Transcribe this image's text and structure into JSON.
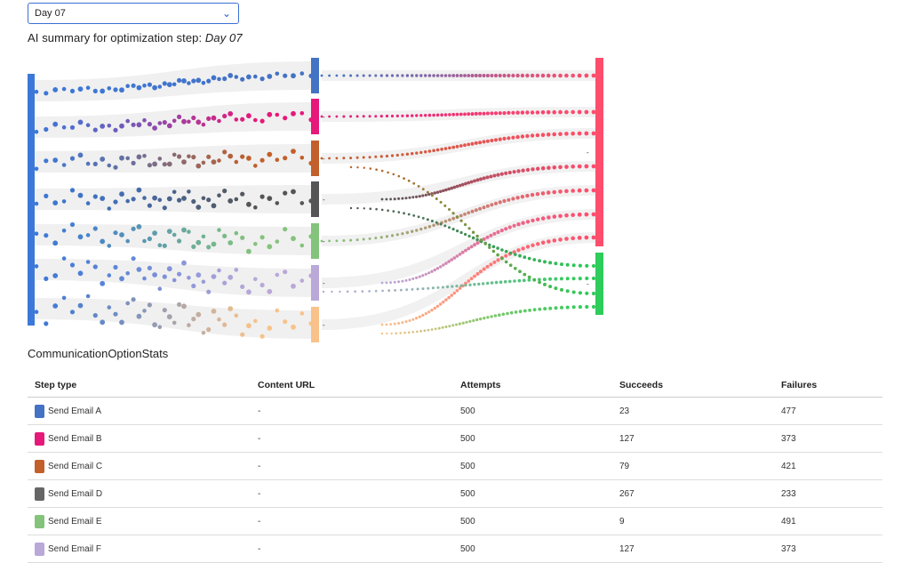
{
  "selector": {
    "value": "Day 07"
  },
  "summary": {
    "prefix": "AI summary for optimization step:",
    "step": "Day 07"
  },
  "stats": {
    "title": "CommunicationOptionStats",
    "columns": [
      "Step type",
      "Content URL",
      "Attempts",
      "Succeeds",
      "Failures"
    ],
    "rows": [
      {
        "step": "Send Email A",
        "url": "-",
        "attempts": "500",
        "succeeds": "23",
        "failures": "477",
        "color": "#4472c4"
      },
      {
        "step": "Send Email B",
        "url": "-",
        "attempts": "500",
        "succeeds": "127",
        "failures": "373",
        "color": "#e6197a"
      },
      {
        "step": "Send Email C",
        "url": "-",
        "attempts": "500",
        "succeeds": "79",
        "failures": "421",
        "color": "#c25f2a"
      },
      {
        "step": "Send Email D",
        "url": "-",
        "attempts": "500",
        "succeeds": "267",
        "failures": "233",
        "color": "#666666"
      },
      {
        "step": "Send Email E",
        "url": "-",
        "attempts": "500",
        "succeeds": "9",
        "failures": "491",
        "color": "#84c37c"
      },
      {
        "step": "Send Email F",
        "url": "-",
        "attempts": "500",
        "succeeds": "127",
        "failures": "373",
        "color": "#b9a8d8"
      }
    ]
  },
  "flow": {
    "source_color": "#3c78d8",
    "options": [
      {
        "color": "#4472c4",
        "label": ""
      },
      {
        "color": "#e6197a",
        "label": "-"
      },
      {
        "color": "#c25f2a",
        "label": "-"
      },
      {
        "color": "#555555",
        "label": "-"
      },
      {
        "color": "#84c37c",
        "label": "-"
      },
      {
        "color": "#b9a8d8",
        "label": "-"
      },
      {
        "color": "#f8c28a",
        "label": "-"
      }
    ],
    "outcomes": [
      {
        "name": "failure",
        "color": "#ff4d6d",
        "label": "-"
      },
      {
        "name": "success",
        "color": "#2ecc5a",
        "label": "-"
      }
    ]
  }
}
